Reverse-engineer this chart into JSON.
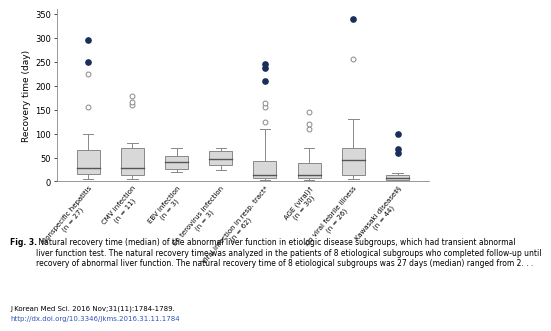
{
  "groups": [
    {
      "label": "Nonspecific hepatitis\n(n = 27)",
      "q1": 15,
      "median": 28,
      "q3": 65,
      "whisker_low": 5,
      "whisker_high": 100,
      "outliers_open": [
        155,
        225
      ],
      "outliers_filled": [
        250,
        295
      ]
    },
    {
      "label": "CMV infection\n(n = 11)",
      "q1": 14,
      "median": 28,
      "q3": 70,
      "whisker_low": 5,
      "whisker_high": 80,
      "outliers_open": [
        160,
        165,
        178
      ],
      "outliers_filled": []
    },
    {
      "label": "EBV infection\n(n = 3)",
      "q1": 26,
      "median": 40,
      "q3": 54,
      "whisker_low": 20,
      "whisker_high": 70,
      "outliers_open": [],
      "outliers_filled": []
    },
    {
      "label": "En terovirus infection\n(n = 3)",
      "q1": 34,
      "median": 48,
      "q3": 63,
      "whisker_low": 25,
      "whisker_high": 70,
      "outliers_open": [],
      "outliers_filled": []
    },
    {
      "label": "Viral infection in resp. tract*\n(n = 62)",
      "q1": 8,
      "median": 14,
      "q3": 42,
      "whisker_low": 3,
      "whisker_high": 110,
      "outliers_open": [
        125,
        155,
        163
      ],
      "outliers_filled": [
        210,
        238,
        245
      ]
    },
    {
      "label": "AGE (viral)†\n(n = 30)",
      "q1": 7,
      "median": 13,
      "q3": 38,
      "whisker_low": 3,
      "whisker_high": 70,
      "outliers_open": [
        110,
        120,
        145
      ],
      "outliers_filled": []
    },
    {
      "label": "r/o viral febrile illness\n(n = 26)",
      "q1": 14,
      "median": 44,
      "q3": 70,
      "whisker_low": 5,
      "whisker_high": 130,
      "outliers_open": [
        255
      ],
      "outliers_filled": [
        340
      ]
    },
    {
      "label": "Kawasaki disease‡§\n(n = 44)",
      "q1": 4,
      "median": 8,
      "q3": 13,
      "whisker_low": 2,
      "whisker_high": 18,
      "outliers_open": [],
      "outliers_filled": [
        60,
        68,
        100
      ]
    }
  ],
  "ylabel": "Recovery time (day)",
  "ylim": [
    0,
    360
  ],
  "yticks": [
    0,
    50,
    100,
    150,
    200,
    250,
    300,
    350
  ],
  "box_facecolor": "#d8d8d8",
  "box_edge_color": "#888888",
  "median_color": "#555555",
  "whisker_color": "#888888",
  "outlier_open_edgecolor": "#888888",
  "outlier_filled_color": "#1a2e5a",
  "caption_bold": "Fig. 3.",
  "caption_text": " Natural recovery time (median) of the abnormal liver function in etiologic disease subgroups, which had transient abnormal\nliver function test. The natural recovery time was analyzed in the patients of 8 etiological subgroups who completed follow-up until\nrecovery of abnormal liver function. The natural recovery time of 8 etiological subgroups was 27 days (median) ranged from 2. . .",
  "journal_text": "J Korean Med Sci. 2016 Nov;31(11):1784-1789.",
  "doi_text": "http://dx.doi.org/10.3346/jkms.2016.31.11.1784"
}
